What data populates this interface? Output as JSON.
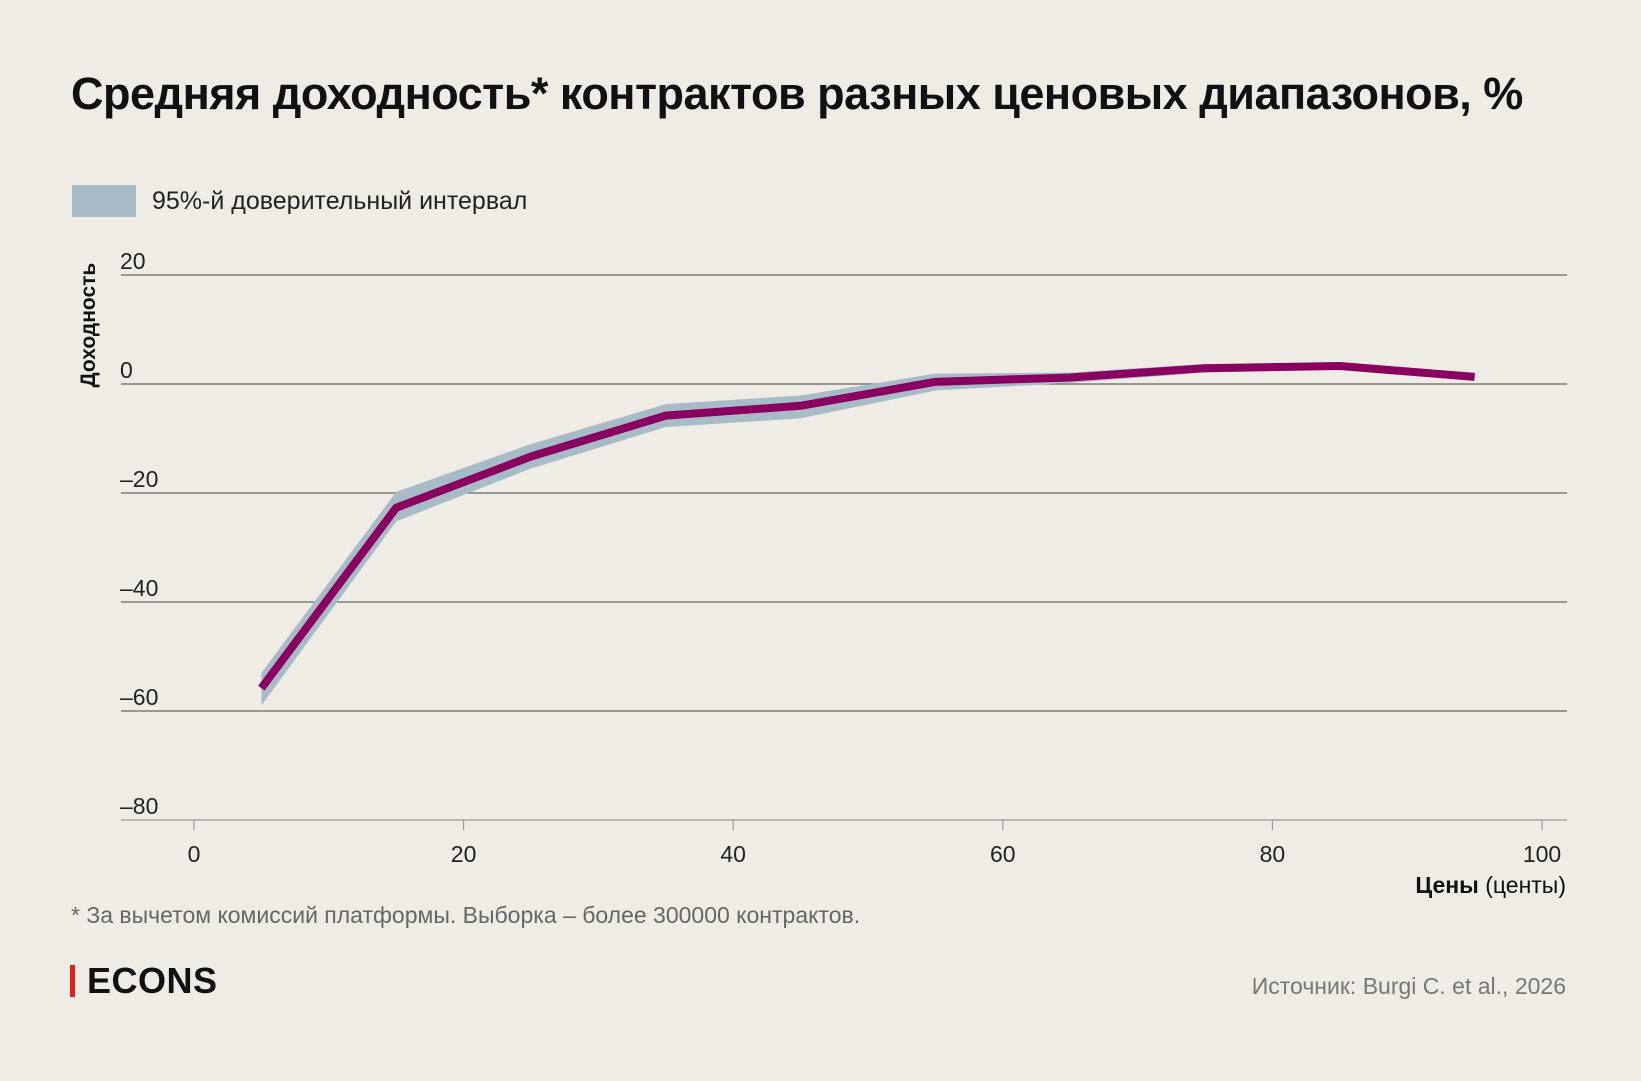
{
  "chart_data": {
    "type": "line",
    "title": "Средняя доходность* контрактов разных ценовых диапазонов, %",
    "legend": [
      {
        "name": "95%-й доверительный интервал",
        "color": "#a8bcc8"
      }
    ],
    "legend_placement": "top-left",
    "xlabel_bold": "Цены",
    "xlabel_rest": " (центы)",
    "ylabel": "Доходность",
    "xlim": [
      -5,
      102
    ],
    "ylim": [
      -80,
      20
    ],
    "xticks": [
      0,
      20,
      40,
      60,
      80,
      100
    ],
    "yticks": [
      20,
      0,
      -20,
      -40,
      -60,
      -80
    ],
    "ytick_labels": [
      "20",
      "0",
      "–20",
      "–40",
      "–60",
      "–80"
    ],
    "grid": "horizontal",
    "line_color": "#8a0060",
    "x": [
      5,
      15,
      25,
      35,
      45,
      55,
      65,
      75,
      85,
      95
    ],
    "y": [
      -55.8,
      -22.7,
      -13.3,
      -5.8,
      -4.0,
      0.4,
      1.2,
      2.9,
      3.3,
      1.3
    ],
    "ci_upper": [
      -53,
      -19.8,
      -11,
      -3.7,
      -2.1,
      1.9,
      2.1,
      3.7,
      3.6,
      1.6
    ],
    "ci_lower": [
      -59,
      -25.2,
      -15.5,
      -7.9,
      -6.3,
      -1.2,
      0.2,
      2.1,
      2.7,
      1.0
    ]
  },
  "footnote": "* За вычетом комиссий платформы. Выборка – более 300000 контрактов.",
  "brand": "ECONS",
  "source": "Источник: Burgi C. et al., 2026"
}
